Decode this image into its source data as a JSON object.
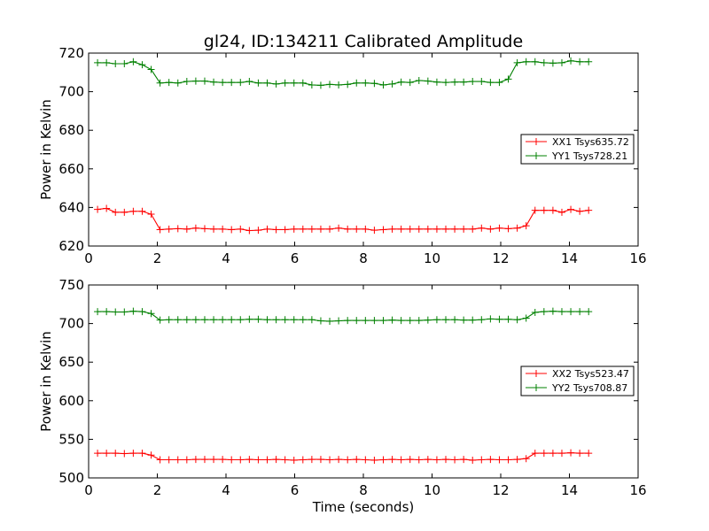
{
  "figure": {
    "title": "gl24, ID:134211 Calibrated Amplitude",
    "xlabel": "Time (seconds)"
  },
  "chart_data": [
    {
      "type": "line",
      "ylabel": "Power in Kelvin",
      "xlim": [
        0,
        16
      ],
      "ylim": [
        620,
        720
      ],
      "xticks": [
        0,
        2,
        4,
        6,
        8,
        10,
        12,
        14,
        16
      ],
      "yticks": [
        620,
        640,
        660,
        680,
        700,
        720
      ],
      "grid": false,
      "legend_position": "center-right",
      "x": [
        0.26,
        0.52,
        0.78,
        1.04,
        1.3,
        1.56,
        1.82,
        2.08,
        2.34,
        2.6,
        2.86,
        3.12,
        3.38,
        3.64,
        3.9,
        4.16,
        4.42,
        4.68,
        4.94,
        5.2,
        5.46,
        5.72,
        5.98,
        6.24,
        6.5,
        6.76,
        7.02,
        7.28,
        7.54,
        7.8,
        8.06,
        8.32,
        8.58,
        8.84,
        9.1,
        9.36,
        9.62,
        9.88,
        10.14,
        10.4,
        10.66,
        10.92,
        11.18,
        11.44,
        11.7,
        11.96,
        12.22,
        12.48,
        12.74,
        13.0,
        13.26,
        13.52,
        13.78,
        14.04,
        14.3,
        14.56
      ],
      "series": [
        {
          "name": "XX1 Tsys635.72",
          "color": "#ff0000",
          "values": [
            639,
            639.5,
            637.5,
            637.5,
            638,
            638,
            636.5,
            628.5,
            628.8,
            629,
            628.8,
            629.3,
            629,
            628.8,
            628.8,
            628.5,
            628.8,
            628,
            628.2,
            628.8,
            628.5,
            628.5,
            628.8,
            628.8,
            628.8,
            628.8,
            628.8,
            629.3,
            628.8,
            628.8,
            628.8,
            628.2,
            628.5,
            628.8,
            628.8,
            628.8,
            628.8,
            628.8,
            628.8,
            628.8,
            628.8,
            628.8,
            628.8,
            629.3,
            628.8,
            629.3,
            629,
            629.3,
            630.5,
            638.5,
            638.5,
            638.5,
            637.5,
            639,
            638,
            638.5
          ]
        },
        {
          "name": "YY1 Tsys728.21",
          "color": "#008000",
          "values": [
            715,
            715,
            714.5,
            714.5,
            715.5,
            714,
            711.5,
            704.5,
            704.8,
            704.5,
            705.3,
            705.5,
            705.5,
            705,
            704.8,
            704.8,
            704.8,
            705.3,
            704.5,
            704.5,
            704,
            704.5,
            704.5,
            704.5,
            703.5,
            703.3,
            703.8,
            703.5,
            703.8,
            704.5,
            704.5,
            704.3,
            703.5,
            704,
            705,
            704.8,
            705.8,
            705.5,
            705,
            704.8,
            705,
            705,
            705.3,
            705.3,
            704.8,
            704.8,
            706.5,
            715,
            715.5,
            715.5,
            715,
            714.8,
            715,
            716,
            715.5,
            715.5
          ]
        }
      ]
    },
    {
      "type": "line",
      "ylabel": "Power in Kelvin",
      "xlim": [
        0,
        16
      ],
      "ylim": [
        500,
        750
      ],
      "xticks": [
        0,
        2,
        4,
        6,
        8,
        10,
        12,
        14,
        16
      ],
      "yticks": [
        500,
        550,
        600,
        650,
        700,
        750
      ],
      "grid": false,
      "legend_position": "center-right",
      "x": [
        0.26,
        0.52,
        0.78,
        1.04,
        1.3,
        1.56,
        1.82,
        2.08,
        2.34,
        2.6,
        2.86,
        3.12,
        3.38,
        3.64,
        3.9,
        4.16,
        4.42,
        4.68,
        4.94,
        5.2,
        5.46,
        5.72,
        5.98,
        6.24,
        6.5,
        6.76,
        7.02,
        7.28,
        7.54,
        7.8,
        8.06,
        8.32,
        8.58,
        8.84,
        9.1,
        9.36,
        9.62,
        9.88,
        10.14,
        10.4,
        10.66,
        10.92,
        11.18,
        11.44,
        11.7,
        11.96,
        12.22,
        12.48,
        12.74,
        13.0,
        13.26,
        13.52,
        13.78,
        14.04,
        14.3,
        14.56
      ],
      "series": [
        {
          "name": "XX2 Tsys523.47",
          "color": "#ff0000",
          "values": [
            532,
            532,
            532,
            531.5,
            532,
            532,
            529.5,
            523.5,
            523.5,
            523.5,
            523.5,
            524,
            524,
            524,
            524,
            523.5,
            523.5,
            524,
            523.5,
            523.5,
            524,
            523.5,
            523,
            523.5,
            524,
            524,
            523.5,
            524,
            523.5,
            524,
            523.5,
            523,
            523.5,
            524,
            523.5,
            524,
            523.5,
            524,
            523.5,
            524,
            523.5,
            524,
            523,
            523.5,
            524,
            523.5,
            523.5,
            524,
            525,
            532,
            532,
            532,
            532,
            532.5,
            532,
            532
          ]
        },
        {
          "name": "YY2 Tsys708.87",
          "color": "#008000",
          "values": [
            715.5,
            715.5,
            715,
            715,
            716,
            715.5,
            713,
            704.5,
            705,
            705,
            705,
            705,
            705,
            705,
            705,
            705,
            705,
            705.5,
            705.5,
            705,
            705,
            705,
            705,
            705,
            705,
            703.5,
            703,
            703.5,
            704,
            704,
            704,
            704,
            704,
            704.5,
            704,
            704,
            704,
            704.5,
            705,
            705,
            705,
            704.5,
            704.5,
            705,
            706,
            705.5,
            705.5,
            705,
            707,
            714.5,
            715.5,
            716,
            715.5,
            715.5,
            715.5,
            715.5
          ]
        }
      ]
    }
  ]
}
